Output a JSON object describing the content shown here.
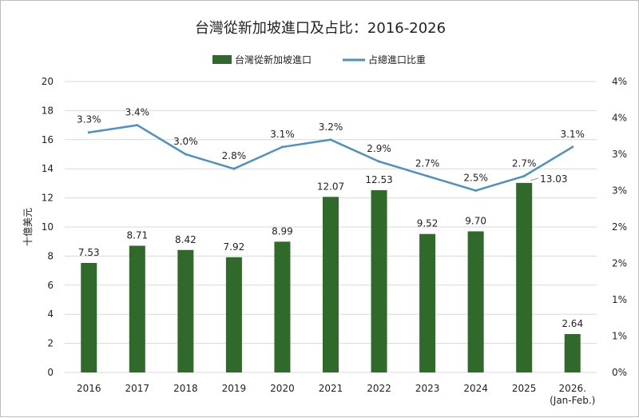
{
  "chart_data": {
    "type": "bar+line",
    "title": "台灣從新加坡進口及占比：2016-2026",
    "categories": [
      "2016",
      "2017",
      "2018",
      "2019",
      "2020",
      "2021",
      "2022",
      "2023",
      "2024",
      "2025",
      "2026.\n(Jan-Feb.)"
    ],
    "series": [
      {
        "name": "台灣從新加坡進口",
        "type": "bar",
        "axis": "left",
        "color": "#2f6a2a",
        "values": [
          7.53,
          8.71,
          8.42,
          7.92,
          8.99,
          12.07,
          12.53,
          9.52,
          9.7,
          13.03,
          2.64
        ],
        "labels": [
          "7.53",
          "8.71",
          "8.42",
          "7.92",
          "8.99",
          "12.07",
          "12.53",
          "9.52",
          "9.70",
          "13.03",
          "2.64"
        ]
      },
      {
        "name": "占總進口比重",
        "type": "line",
        "axis": "right",
        "color": "#4a92c6",
        "values": [
          3.3,
          3.4,
          3.0,
          2.8,
          3.1,
          3.2,
          2.9,
          2.7,
          2.5,
          2.7,
          3.1
        ],
        "labels": [
          "3.3%",
          "3.4%",
          "3.0%",
          "2.8%",
          "3.1%",
          "3.2%",
          "2.9%",
          "2.7%",
          "2.5%",
          "2.7%",
          "3.1%"
        ]
      }
    ],
    "ylabel": "十億美元",
    "ylim": [
      0,
      20
    ],
    "yticks": [
      "0",
      "2",
      "4",
      "6",
      "8",
      "10",
      "12",
      "14",
      "16",
      "18",
      "20"
    ],
    "y2lim": [
      0,
      4
    ],
    "y2ticks": [
      "0%",
      "1%",
      "1%",
      "2%",
      "2%",
      "3%",
      "3%",
      "4%",
      "4%"
    ],
    "grid": true,
    "legend": "top"
  }
}
